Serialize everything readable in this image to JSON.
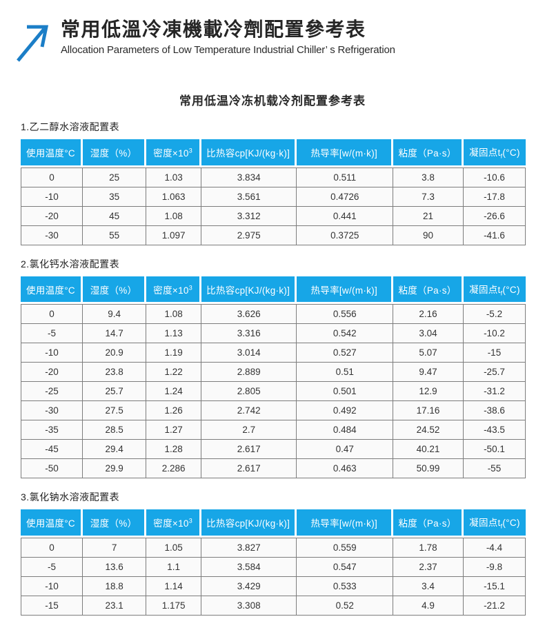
{
  "page": {
    "header": {
      "title": "常用低溫冷凍機載冷劑配置參考表",
      "subtitle": "Allocation Parameters of Low Temperature Industrial Chiller’ s Refrigeration"
    },
    "body_title": "常用低温冷冻机载冷剂配置参考表"
  },
  "colors": {
    "accent_blue": "#17a6e7",
    "logo_blue": "#1b7ec7",
    "header_text": "#ffffff",
    "cell_text": "#333333",
    "cell_background": "#fafafa",
    "grid_border": "#7c7c7c"
  },
  "columns": [
    {
      "text": "使用温度°C"
    },
    {
      "text": "湿度（%）"
    },
    {
      "text": "密度×10",
      "sup": "3"
    },
    {
      "text": "比热容cp[KJ/(kg·k)]"
    },
    {
      "text": "热导率[w/(m·k)]"
    },
    {
      "text": "粘度（Pa·s）"
    },
    {
      "text": "凝固点t",
      "sub": "f",
      "post": "(°C)"
    }
  ],
  "column_widths": [
    "12.3%",
    "12.6%",
    "10.9%",
    "18.9%",
    "19.1%",
    "13.9%",
    "12.3%"
  ],
  "tables": [
    {
      "id": "glycol",
      "section_label": "1.乙二醇水溶液配置表",
      "rows": [
        [
          "0",
          "25",
          "1.03",
          "3.834",
          "0.511",
          "3.8",
          "-10.6"
        ],
        [
          "-10",
          "35",
          "1.063",
          "3.561",
          "0.4726",
          "7.3",
          "-17.8"
        ],
        [
          "-20",
          "45",
          "1.08",
          "3.312",
          "0.441",
          "21",
          "-26.6"
        ],
        [
          "-30",
          "55",
          "1.097",
          "2.975",
          "0.3725",
          "90",
          "-41.6"
        ]
      ]
    },
    {
      "id": "calcium-chloride",
      "section_label": "2.氯化钙水溶液配置表",
      "rows": [
        [
          "0",
          "9.4",
          "1.08",
          "3.626",
          "0.556",
          "2.16",
          "-5.2"
        ],
        [
          "-5",
          "14.7",
          "1.13",
          "3.316",
          "0.542",
          "3.04",
          "-10.2"
        ],
        [
          "-10",
          "20.9",
          "1.19",
          "3.014",
          "0.527",
          "5.07",
          "-15"
        ],
        [
          "-20",
          "23.8",
          "1.22",
          "2.889",
          "0.51",
          "9.47",
          "-25.7"
        ],
        [
          "-25",
          "25.7",
          "1.24",
          "2.805",
          "0.501",
          "12.9",
          "-31.2"
        ],
        [
          "-30",
          "27.5",
          "1.26",
          "2.742",
          "0.492",
          "17.16",
          "-38.6"
        ],
        [
          "-35",
          "28.5",
          "1.27",
          "2.7",
          "0.484",
          "24.52",
          "-43.5"
        ],
        [
          "-45",
          "29.4",
          "1.28",
          "2.617",
          "0.47",
          "40.21",
          "-50.1"
        ],
        [
          "-50",
          "29.9",
          "2.286",
          "2.617",
          "0.463",
          "50.99",
          "-55"
        ]
      ]
    },
    {
      "id": "sodium-chloride",
      "section_label": "3.氯化钠水溶液配置表",
      "rows": [
        [
          "0",
          "7",
          "1.05",
          "3.827",
          "0.559",
          "1.78",
          "-4.4"
        ],
        [
          "-5",
          "13.6",
          "1.1",
          "3.584",
          "0.547",
          "2.37",
          "-9.8"
        ],
        [
          "-10",
          "18.8",
          "1.14",
          "3.429",
          "0.533",
          "3.4",
          "-15.1"
        ],
        [
          "-15",
          "23.1",
          "1.175",
          "3.308",
          "0.52",
          "4.9",
          "-21.2"
        ]
      ]
    }
  ]
}
